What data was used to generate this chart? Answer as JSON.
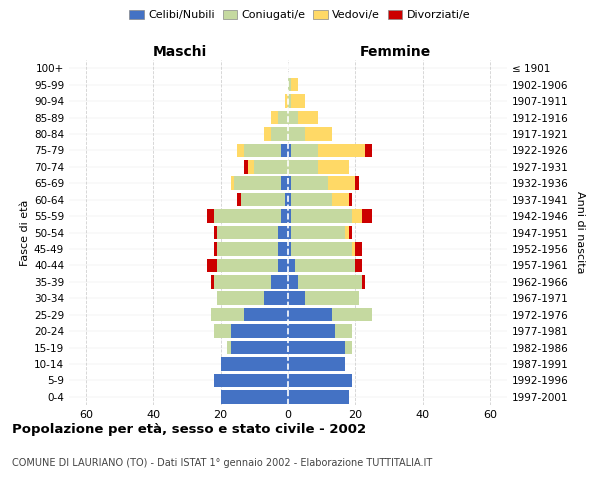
{
  "age_groups": [
    "0-4",
    "5-9",
    "10-14",
    "15-19",
    "20-24",
    "25-29",
    "30-34",
    "35-39",
    "40-44",
    "45-49",
    "50-54",
    "55-59",
    "60-64",
    "65-69",
    "70-74",
    "75-79",
    "80-84",
    "85-89",
    "90-94",
    "95-99",
    "100+"
  ],
  "birth_years": [
    "1997-2001",
    "1992-1996",
    "1987-1991",
    "1982-1986",
    "1977-1981",
    "1972-1976",
    "1967-1971",
    "1962-1966",
    "1957-1961",
    "1952-1956",
    "1947-1951",
    "1942-1946",
    "1937-1941",
    "1932-1936",
    "1927-1931",
    "1922-1926",
    "1917-1921",
    "1912-1916",
    "1907-1911",
    "1902-1906",
    "≤ 1901"
  ],
  "males_celibi": [
    20,
    22,
    20,
    17,
    17,
    13,
    7,
    5,
    3,
    3,
    3,
    2,
    1,
    2,
    0,
    2,
    0,
    0,
    0,
    0,
    0
  ],
  "males_coniugati": [
    0,
    0,
    0,
    1,
    5,
    10,
    14,
    17,
    18,
    18,
    18,
    20,
    13,
    14,
    10,
    11,
    5,
    3,
    0,
    0,
    0
  ],
  "males_vedovi": [
    0,
    0,
    0,
    0,
    0,
    0,
    0,
    0,
    0,
    0,
    0,
    0,
    0,
    1,
    2,
    2,
    2,
    2,
    1,
    0,
    0
  ],
  "males_divorziati": [
    0,
    0,
    0,
    0,
    0,
    0,
    0,
    1,
    3,
    1,
    1,
    2,
    1,
    0,
    1,
    0,
    0,
    0,
    0,
    0,
    0
  ],
  "females_nubili": [
    18,
    19,
    17,
    17,
    14,
    13,
    5,
    3,
    2,
    1,
    1,
    1,
    1,
    1,
    0,
    1,
    0,
    0,
    0,
    0,
    0
  ],
  "females_coniugate": [
    0,
    0,
    0,
    2,
    5,
    12,
    16,
    19,
    18,
    18,
    16,
    18,
    12,
    11,
    9,
    8,
    5,
    3,
    1,
    1,
    0
  ],
  "females_vedove": [
    0,
    0,
    0,
    0,
    0,
    0,
    0,
    0,
    0,
    1,
    1,
    3,
    5,
    8,
    9,
    14,
    8,
    6,
    4,
    2,
    0
  ],
  "females_divorziate": [
    0,
    0,
    0,
    0,
    0,
    0,
    0,
    1,
    2,
    2,
    1,
    3,
    1,
    1,
    0,
    2,
    0,
    0,
    0,
    0,
    0
  ],
  "color_celibi": "#4472c4",
  "color_coniugati": "#c5d9a0",
  "color_vedovi": "#ffd966",
  "color_divorziati": "#cc0000",
  "xlim": 65,
  "title": "Popolazione per età, sesso e stato civile - 2002",
  "subtitle": "COMUNE DI LAURIANO (TO) - Dati ISTAT 1° gennaio 2002 - Elaborazione TUTTITALIA.IT",
  "ylabel_left": "Fasce di età",
  "ylabel_right": "Anni di nascita",
  "label_maschi": "Maschi",
  "label_femmine": "Femmine",
  "legend_labels": [
    "Celibi/Nubili",
    "Coniugati/e",
    "Vedovi/e",
    "Divorziati/e"
  ],
  "background_color": "#ffffff",
  "grid_color": "#cccccc"
}
